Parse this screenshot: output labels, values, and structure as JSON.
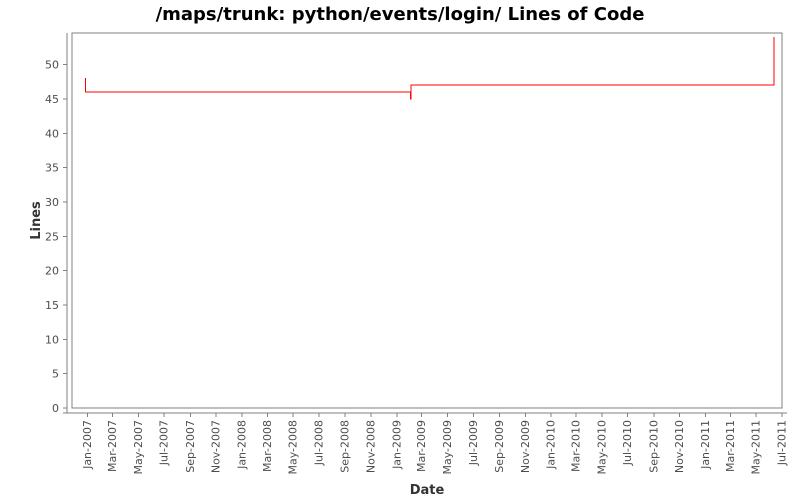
{
  "chart_data": {
    "type": "line",
    "subtype": "step",
    "title": "/maps/trunk: python/events/login/ Lines of Code",
    "xlabel": "Date",
    "ylabel": "Lines",
    "legend": "none",
    "grid": false,
    "frame_color": "#808080",
    "tick_label_color": "#4d4d4d",
    "background_color": "#ffffff",
    "ylim": [
      0,
      54.6
    ],
    "y_ticks": [
      0,
      5,
      10,
      15,
      20,
      25,
      30,
      35,
      40,
      45,
      50
    ],
    "xlim": [
      "2006-11-25",
      "2011-07-01"
    ],
    "x_tick_labels": [
      "Jan-2007",
      "Mar-2007",
      "May-2007",
      "Jul-2007",
      "Sep-2007",
      "Nov-2007",
      "Jan-2008",
      "Mar-2008",
      "May-2008",
      "Jul-2008",
      "Sep-2008",
      "Nov-2008",
      "Jan-2009",
      "Mar-2009",
      "May-2009",
      "Jul-2009",
      "Sep-2009",
      "Nov-2009",
      "Jan-2010",
      "Mar-2010",
      "May-2010",
      "Jul-2010",
      "Sep-2010",
      "Nov-2010",
      "Jan-2011",
      "Mar-2011",
      "May-2011",
      "Jul-2011"
    ],
    "series": [
      {
        "name": "Lines of Code",
        "color": "#ff0000",
        "points": [
          {
            "date": "2006-12-26",
            "lines": 48
          },
          {
            "date": "2006-12-27",
            "lines": 46
          },
          {
            "date": "2009-02-03",
            "lines": 45
          },
          {
            "date": "2009-02-04",
            "lines": 47
          },
          {
            "date": "2011-06-12",
            "lines": 54
          }
        ]
      }
    ]
  }
}
